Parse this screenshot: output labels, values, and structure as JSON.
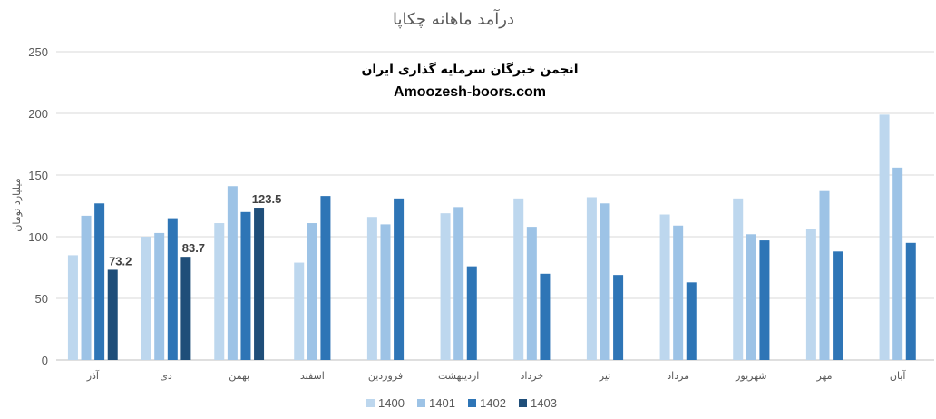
{
  "chart_data": {
    "type": "bar",
    "title": "درآمد ماهانه چکاپا",
    "ylabel": "میلیارد تومان",
    "xlabel": "",
    "ylim": [
      0,
      250
    ],
    "yticks": [
      0,
      50,
      100,
      150,
      200,
      250
    ],
    "grid": true,
    "legend_position": "bottom",
    "categories": [
      "آذر",
      "دی",
      "بهمن",
      "اسفند",
      "فروردین",
      "اردیبهشت",
      "خرداد",
      "تیر",
      "مرداد",
      "شهریور",
      "مهر",
      "آبان"
    ],
    "series": [
      {
        "name": "1400",
        "color": "#bdd7ee",
        "values": [
          85,
          100,
          111,
          79,
          116,
          119,
          131,
          132,
          118,
          131,
          106,
          199
        ]
      },
      {
        "name": "1401",
        "color": "#9dc3e6",
        "values": [
          117,
          103,
          141,
          111,
          110,
          124,
          108,
          127,
          109,
          102,
          137,
          156
        ]
      },
      {
        "name": "1402",
        "color": "#2e75b6",
        "values": [
          127,
          115,
          120,
          133,
          131,
          76,
          70,
          69,
          63,
          97,
          88,
          95
        ]
      },
      {
        "name": "1403",
        "color": "#1f4e79",
        "values": [
          73.2,
          83.7,
          123.5,
          null,
          null,
          null,
          null,
          null,
          null,
          null,
          null,
          null
        ]
      }
    ],
    "data_labels": [
      {
        "series": "1403",
        "category": "آذر",
        "text": "73.2"
      },
      {
        "series": "1403",
        "category": "دی",
        "text": "83.7"
      },
      {
        "series": "1403",
        "category": "بهمن",
        "text": "123.5"
      }
    ],
    "annotations": [
      "انجمن خبرگان سرمایه گذاری ایران",
      "Amoozesh-boors.com"
    ]
  },
  "colors": {
    "grid": "#d9d9d9",
    "axis": "#bfbfbf",
    "text": "#595959"
  }
}
